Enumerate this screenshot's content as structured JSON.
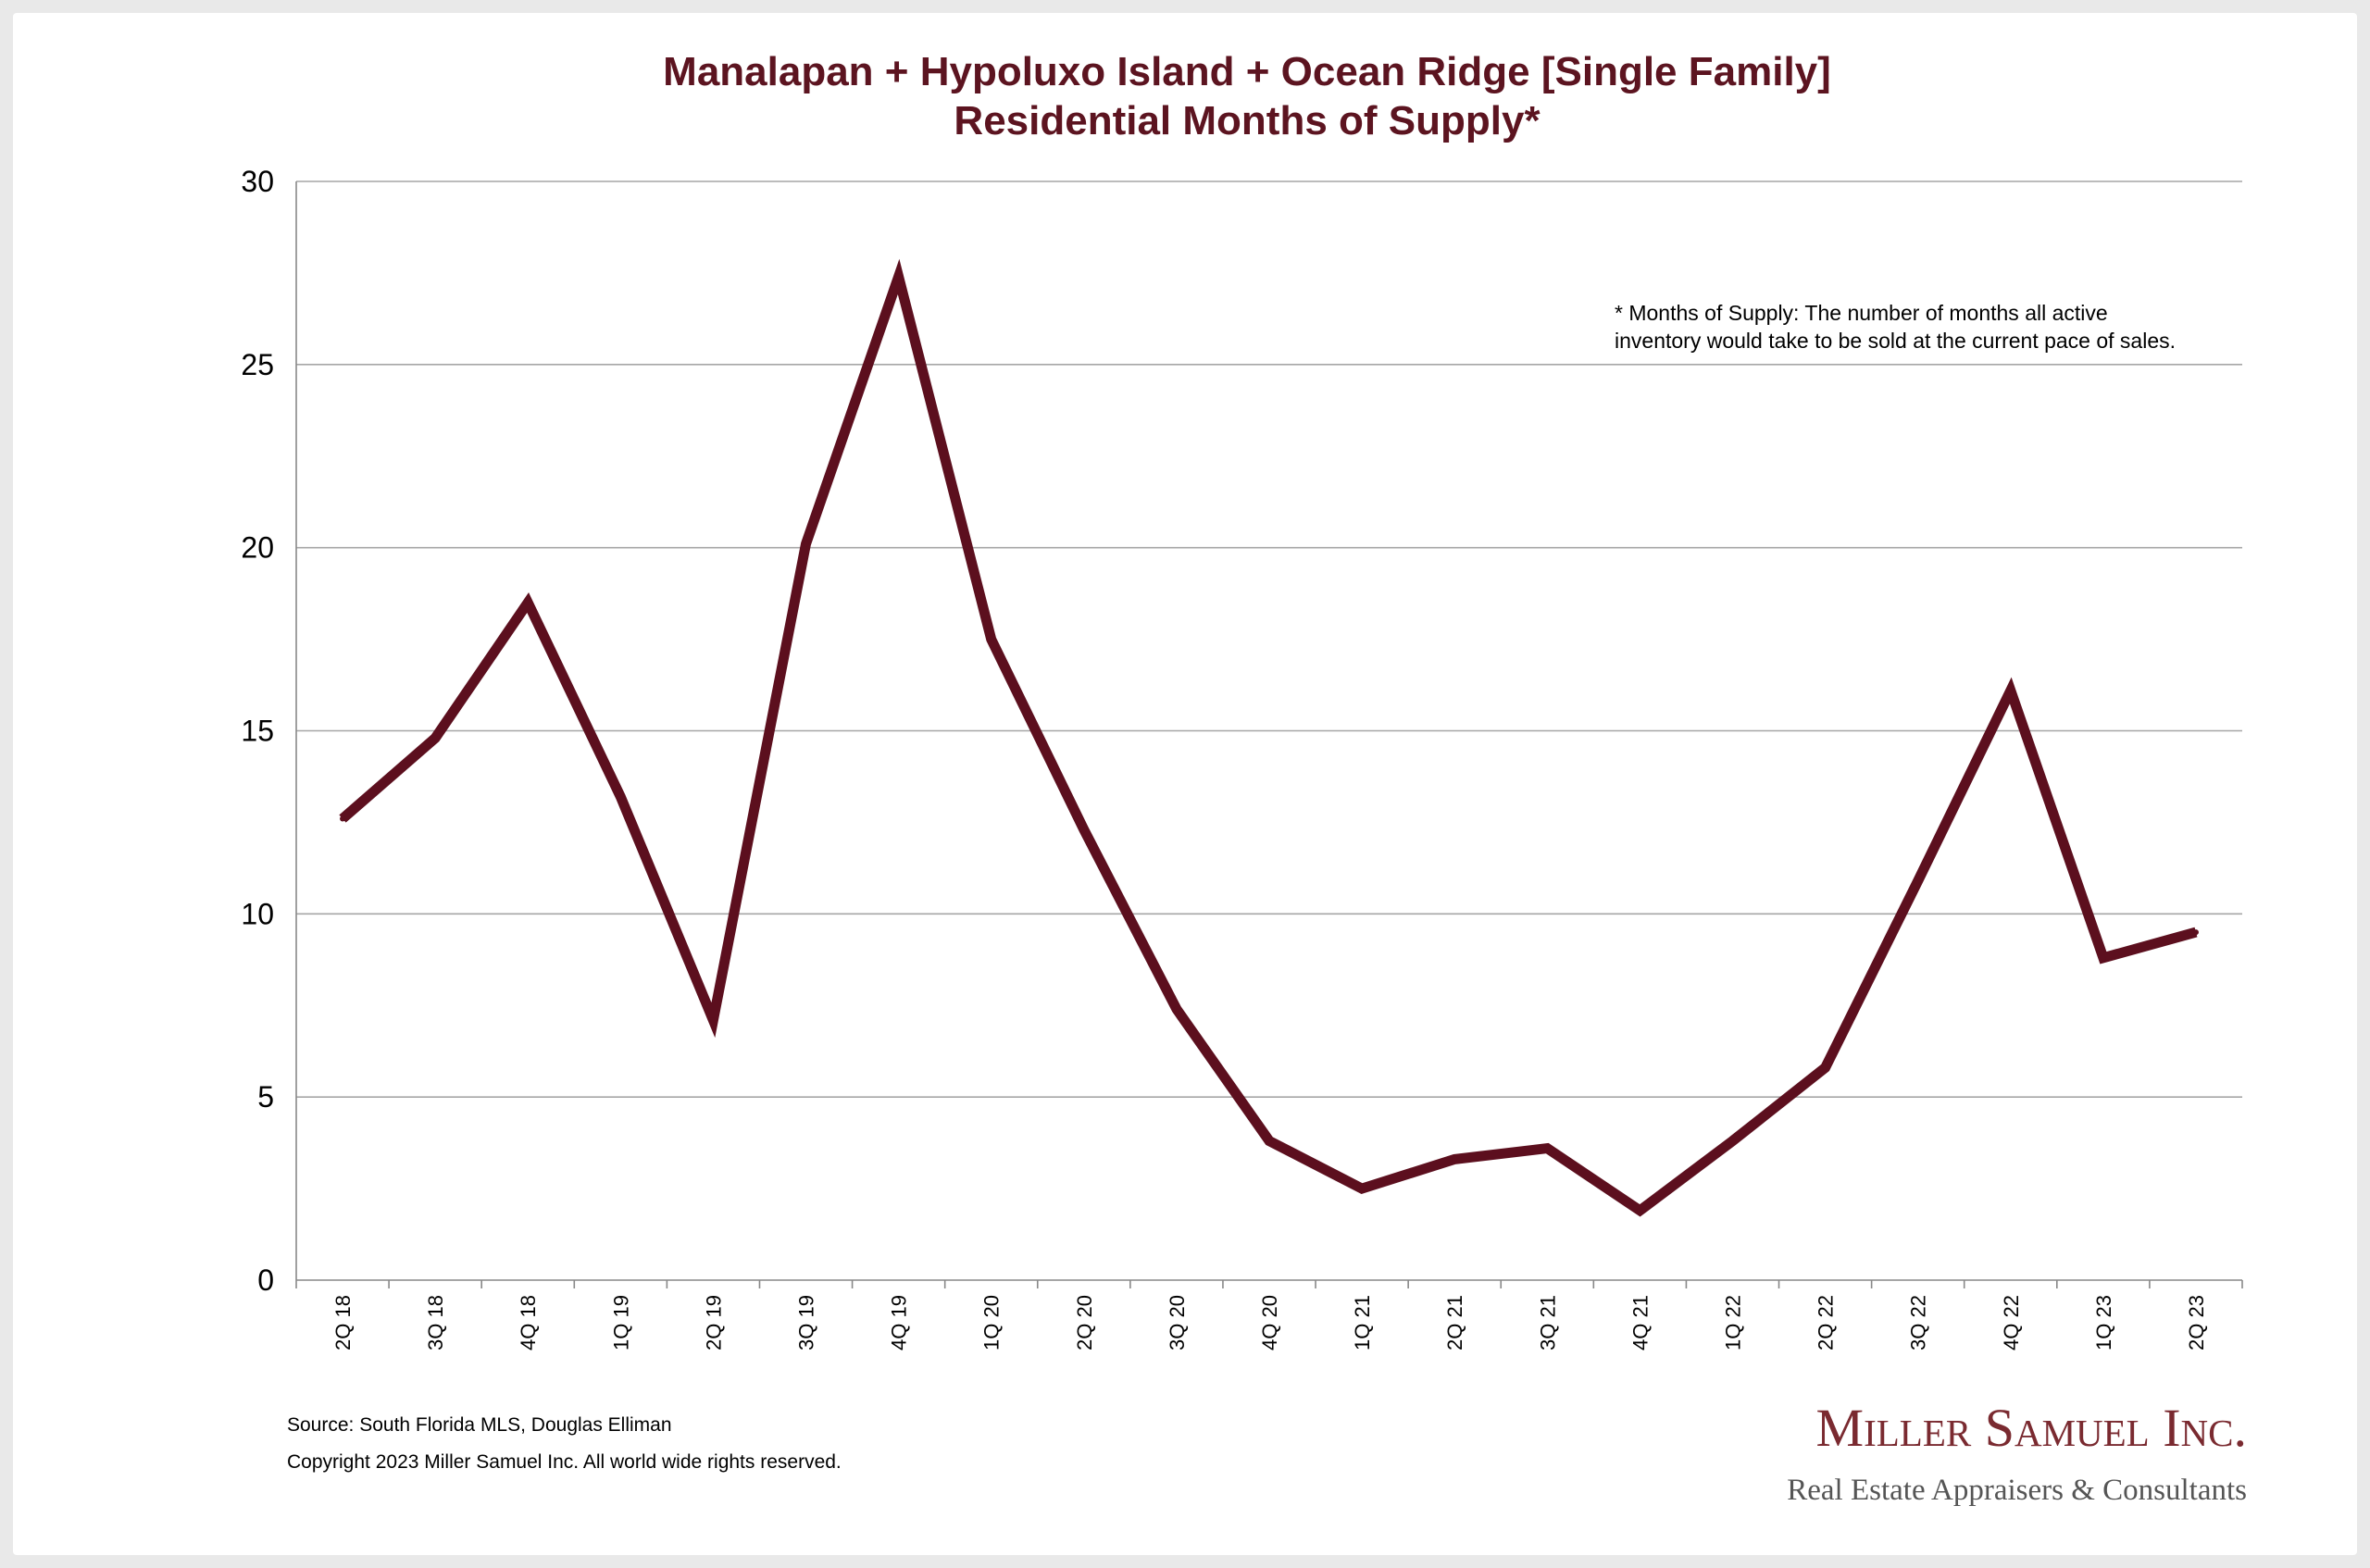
{
  "chart_data": {
    "type": "line",
    "title": [
      "Manalapan + Hypoluxo Island + Ocean Ridge [Single Family]",
      "Residential Months of Supply*"
    ],
    "categories": [
      "2Q 18",
      "3Q 18",
      "4Q 18",
      "1Q 19",
      "2Q 19",
      "3Q 19",
      "4Q 19",
      "1Q 20",
      "2Q 20",
      "3Q 20",
      "4Q 20",
      "1Q 21",
      "2Q 21",
      "3Q 21",
      "4Q 21",
      "1Q 22",
      "2Q 22",
      "3Q 22",
      "4Q 22",
      "1Q 23",
      "2Q 23"
    ],
    "series": [
      {
        "values": [
          12.6,
          14.8,
          18.5,
          13.2,
          7.1,
          20.1,
          27.4,
          17.5,
          12.3,
          7.4,
          3.8,
          2.5,
          3.3,
          3.6,
          1.9,
          3.8,
          5.8,
          10.9,
          16.1,
          8.8,
          9.5
        ]
      }
    ],
    "yticks": [
      "0",
      "5",
      "10",
      "15",
      "20",
      "25",
      "30"
    ],
    "ylim": [
      0,
      30
    ],
    "xlabel": "",
    "ylabel": "",
    "grid": true,
    "line_color": "#5c0f1e",
    "annotation": [
      "* Months of Supply: The number of months all active",
      "inventory would take to be sold at the current pace of sales."
    ]
  },
  "footer": {
    "source": "Source: South Florida MLS, Douglas Elliman",
    "copyright": "Copyright 2023 Miller Samuel Inc.  All world wide rights reserved."
  },
  "brand": {
    "name": "Miller Samuel Inc.",
    "tagline": "Real Estate Appraisers & Consultants"
  },
  "colors": {
    "title": "#5c1420",
    "line": "#5c0f1e",
    "grid": "#a6a6a6",
    "axis": "#888888",
    "brand_main": "#7a2a30",
    "brand_sub": "#555555"
  }
}
